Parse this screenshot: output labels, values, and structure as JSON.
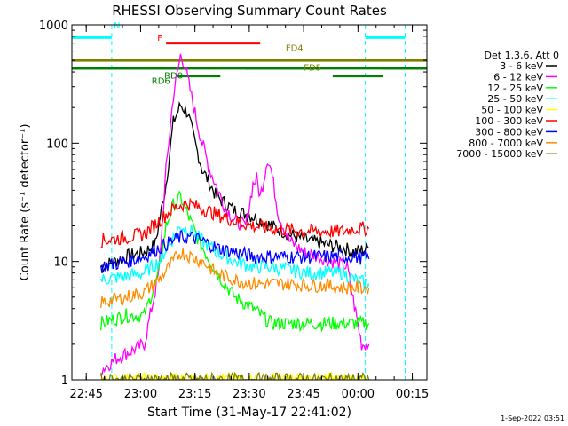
{
  "chart_data": {
    "type": "line",
    "title": "RHESSI Observing Summary Count Rates",
    "xlabel": "Start Time (31-May-17 22:41:02)",
    "ylabel": "Count Rate (s⁻¹ detector⁻¹)",
    "yscale": "log",
    "ylim": [
      1,
      1000
    ],
    "xlim_minutes_from_start": [
      0,
      98
    ],
    "y_ticks": [
      {
        "value": 1,
        "label": "1"
      },
      {
        "value": 10,
        "label": "10"
      },
      {
        "value": 100,
        "label": "100"
      },
      {
        "value": 1000,
        "label": "1000"
      }
    ],
    "x_ticks": [
      {
        "label": "22:45",
        "minute": 3.97
      },
      {
        "label": "23:00",
        "minute": 18.97
      },
      {
        "label": "23:15",
        "minute": 33.97
      },
      {
        "label": "23:30",
        "minute": 48.97
      },
      {
        "label": "23:45",
        "minute": 63.97
      },
      {
        "label": "00:00",
        "minute": 78.97
      },
      {
        "label": "00:15",
        "minute": 93.97
      }
    ],
    "legend_header": "Det 1,3,6, Att 0",
    "legend_position": "right",
    "series": [
      {
        "name": "3 - 6 keV",
        "color": "#000000",
        "values": [
          [
            8,
            9
          ],
          [
            15,
            11
          ],
          [
            20,
            12
          ],
          [
            23,
            14
          ],
          [
            26,
            45
          ],
          [
            28,
            150
          ],
          [
            30,
            210
          ],
          [
            32,
            180
          ],
          [
            34,
            100
          ],
          [
            36,
            60
          ],
          [
            40,
            35
          ],
          [
            45,
            27
          ],
          [
            50,
            24
          ],
          [
            55,
            20
          ],
          [
            60,
            17
          ],
          [
            65,
            15
          ],
          [
            70,
            14
          ],
          [
            75,
            13
          ],
          [
            78,
            12
          ],
          [
            82,
            13
          ]
        ]
      },
      {
        "name": "6 - 12 keV",
        "color": "#ff00ff",
        "values": [
          [
            8,
            1.2
          ],
          [
            12,
            1.5
          ],
          [
            20,
            2
          ],
          [
            24,
            8
          ],
          [
            26,
            60
          ],
          [
            28,
            250
          ],
          [
            30,
            550
          ],
          [
            31,
            480
          ],
          [
            33,
            250
          ],
          [
            35,
            130
          ],
          [
            38,
            60
          ],
          [
            42,
            30
          ],
          [
            45,
            22
          ],
          [
            48,
            20
          ],
          [
            50,
            45
          ],
          [
            51,
            50
          ],
          [
            52,
            35
          ],
          [
            53,
            50
          ],
          [
            54,
            75
          ],
          [
            55,
            60
          ],
          [
            57,
            25
          ],
          [
            60,
            15
          ],
          [
            64,
            12
          ],
          [
            68,
            11
          ],
          [
            72,
            10
          ],
          [
            76,
            9
          ],
          [
            80,
            2
          ],
          [
            82,
            2
          ]
        ]
      },
      {
        "name": "12 - 25 keV",
        "color": "#00ff00",
        "values": [
          [
            8,
            3
          ],
          [
            15,
            3.5
          ],
          [
            20,
            3.5
          ],
          [
            24,
            8
          ],
          [
            26,
            20
          ],
          [
            28,
            30
          ],
          [
            30,
            35
          ],
          [
            32,
            25
          ],
          [
            35,
            15
          ],
          [
            40,
            8
          ],
          [
            45,
            5
          ],
          [
            50,
            4
          ],
          [
            55,
            3
          ],
          [
            60,
            3
          ],
          [
            65,
            3
          ],
          [
            70,
            3
          ],
          [
            75,
            3
          ],
          [
            78,
            3
          ],
          [
            82,
            3
          ]
        ]
      },
      {
        "name": "25 - 50 keV",
        "color": "#00ffff",
        "values": [
          [
            8,
            7
          ],
          [
            15,
            7.5
          ],
          [
            20,
            8
          ],
          [
            24,
            10
          ],
          [
            28,
            16
          ],
          [
            30,
            20
          ],
          [
            33,
            18
          ],
          [
            36,
            15
          ],
          [
            40,
            12
          ],
          [
            45,
            10
          ],
          [
            50,
            9
          ],
          [
            55,
            9
          ],
          [
            60,
            8.5
          ],
          [
            65,
            8
          ],
          [
            70,
            8
          ],
          [
            75,
            8
          ],
          [
            78,
            7
          ],
          [
            82,
            6.5
          ]
        ]
      },
      {
        "name": "50 - 100 keV",
        "color": "#ffff00",
        "values": [
          [
            8,
            1
          ],
          [
            82,
            1
          ]
        ]
      },
      {
        "name": "100 - 300 keV",
        "color": "#ff0000",
        "values": [
          [
            8,
            15
          ],
          [
            15,
            16
          ],
          [
            20,
            17
          ],
          [
            24,
            22
          ],
          [
            28,
            28
          ],
          [
            30,
            30
          ],
          [
            32,
            31
          ],
          [
            36,
            28
          ],
          [
            40,
            25
          ],
          [
            45,
            22
          ],
          [
            50,
            20
          ],
          [
            55,
            19
          ],
          [
            60,
            18.5
          ],
          [
            65,
            18
          ],
          [
            70,
            18
          ],
          [
            75,
            18
          ],
          [
            78,
            19
          ],
          [
            82,
            19
          ]
        ]
      },
      {
        "name": "300 - 800 keV",
        "color": "#0000ff",
        "values": [
          [
            8,
            9
          ],
          [
            15,
            10
          ],
          [
            20,
            11
          ],
          [
            24,
            13
          ],
          [
            28,
            15
          ],
          [
            30,
            16
          ],
          [
            33,
            16
          ],
          [
            36,
            15
          ],
          [
            40,
            13
          ],
          [
            45,
            12
          ],
          [
            50,
            11
          ],
          [
            55,
            11
          ],
          [
            60,
            11
          ],
          [
            65,
            11
          ],
          [
            70,
            11
          ],
          [
            75,
            11
          ],
          [
            78,
            11
          ],
          [
            82,
            10.5
          ]
        ]
      },
      {
        "name": "800 - 7000 keV",
        "color": "#ff8c00",
        "values": [
          [
            8,
            4.5
          ],
          [
            15,
            5
          ],
          [
            20,
            5.5
          ],
          [
            24,
            7
          ],
          [
            28,
            10
          ],
          [
            30,
            12
          ],
          [
            33,
            11
          ],
          [
            36,
            10
          ],
          [
            40,
            8
          ],
          [
            45,
            7
          ],
          [
            50,
            6.5
          ],
          [
            55,
            6.5
          ],
          [
            60,
            6.5
          ],
          [
            65,
            6.3
          ],
          [
            70,
            6.3
          ],
          [
            75,
            6
          ],
          [
            78,
            6
          ],
          [
            82,
            6
          ]
        ]
      },
      {
        "name": "7000 - 15000 keV",
        "color": "#808000",
        "values": [
          [
            8,
            1
          ],
          [
            82,
            1
          ]
        ]
      }
    ],
    "flag_bars": [
      {
        "label": "F",
        "color": "#ff0000",
        "level": 700,
        "segments": [
          [
            26,
            52
          ]
        ]
      },
      {
        "label": "FD4",
        "color": "#808000",
        "level": 500,
        "segments": [
          [
            0,
            98
          ]
        ]
      },
      {
        "label": "FD5",
        "color": "#808000",
        "level": 500,
        "segments": []
      },
      {
        "label": "",
        "color": "#008000",
        "level": 430,
        "segments": [
          [
            0,
            98
          ]
        ]
      },
      {
        "label": "RD0",
        "color": "#008000",
        "level": 430,
        "segments": [
          [
            0,
            31
          ],
          [
            48,
            66
          ],
          [
            86,
            98
          ]
        ]
      },
      {
        "label": "RD6",
        "color": "#008000",
        "level": 370,
        "segments": [
          [
            29,
            41
          ],
          [
            72,
            86
          ]
        ]
      },
      {
        "label": "N",
        "color": "#00ffff",
        "level": 780,
        "segments": [
          [
            0,
            11
          ],
          [
            81,
            92
          ]
        ]
      }
    ],
    "night_boundaries_minutes": [
      11,
      81,
      92
    ],
    "timestamp": "1-Sep-2022 03:51"
  }
}
